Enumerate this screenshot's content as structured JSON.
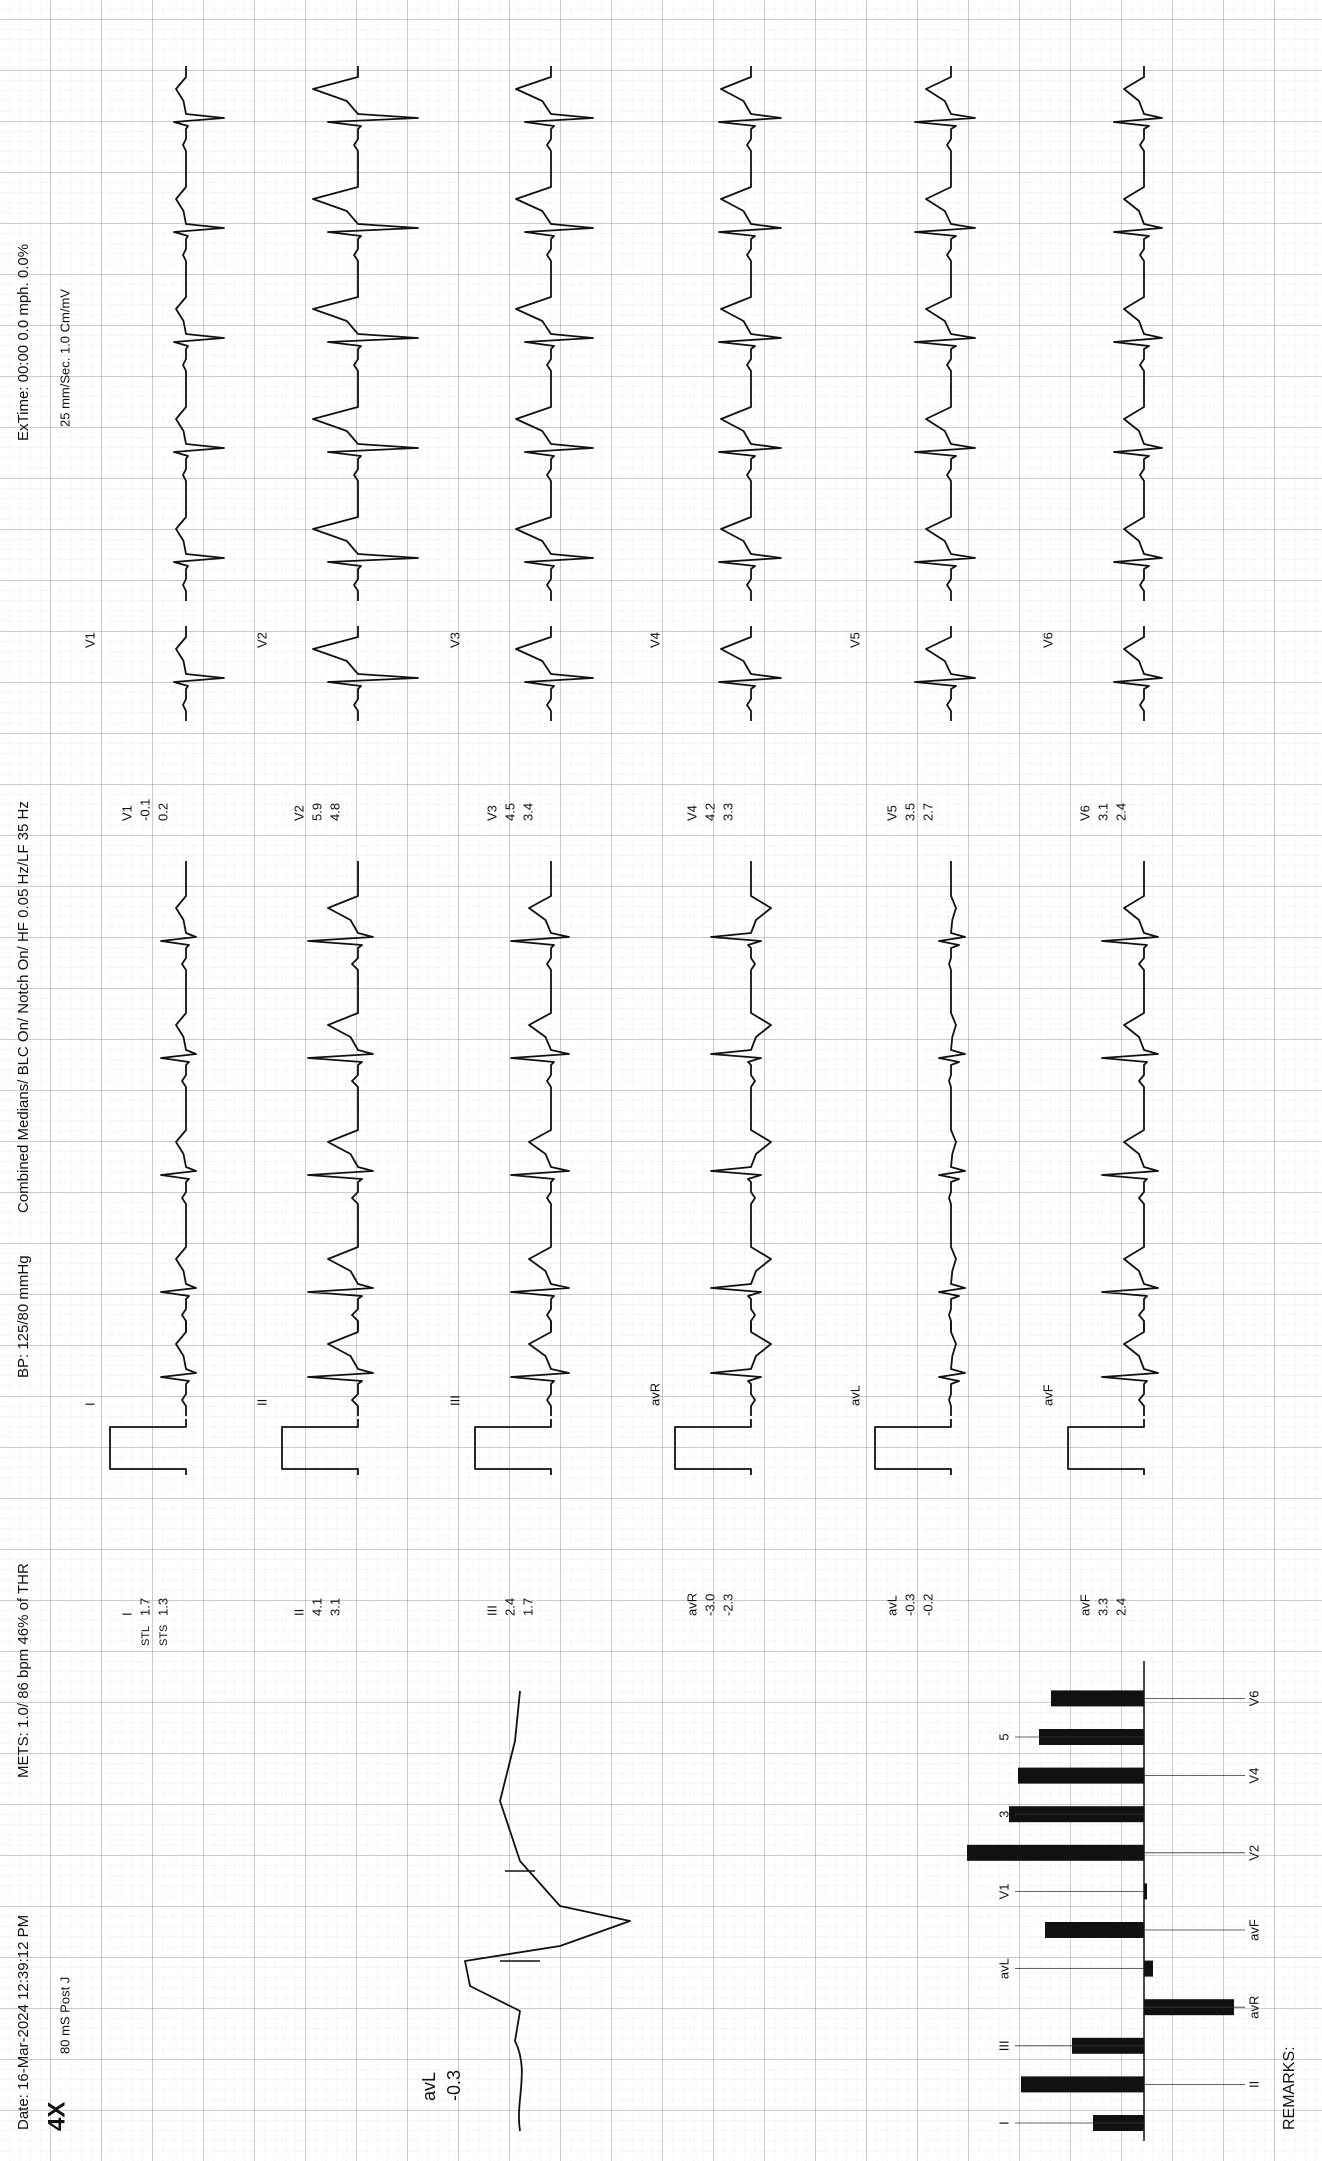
{
  "header": {
    "date": "Date: 16-Mar-2024 12:39:12 PM",
    "mets": "METS: 1.0/ 86 bpm 46% of THR",
    "bp": "BP: 125/80 mmHg",
    "filters": "Combined Medians/ BLC On/ Notch On/ HF 0.05 Hz/LF 35  Hz",
    "extime": "ExTime: 00:00   0.0 mph.   0.0%",
    "speed": "25 mm/Sec.  1.0 Cm/mV",
    "stage": "4X",
    "post_j": "80 mS Post J"
  },
  "median_zoom": {
    "lead": "avL",
    "value": "-0.3"
  },
  "measurement_labels": {
    "stl": "STL",
    "sts": "STS"
  },
  "leads": [
    {
      "name": "I",
      "stl": "1.7",
      "sts": "1.3"
    },
    {
      "name": "II",
      "stl": "4.1",
      "sts": "3.1"
    },
    {
      "name": "III",
      "stl": "2.4",
      "sts": "1.7"
    },
    {
      "name": "avR",
      "stl": "-3.0",
      "sts": "-2.3"
    },
    {
      "name": "avL",
      "stl": "-0.3",
      "sts": "-0.2"
    },
    {
      "name": "avF",
      "stl": "3.3",
      "sts": "2.4"
    },
    {
      "name": "V1",
      "stl": "-0.1",
      "sts": "0.2"
    },
    {
      "name": "V2",
      "stl": "5.9",
      "sts": "4.8"
    },
    {
      "name": "V3",
      "stl": "4.5",
      "sts": "3.4"
    },
    {
      "name": "V4",
      "stl": "4.2",
      "sts": "3.3"
    },
    {
      "name": "V5",
      "stl": "3.5",
      "sts": "2.7"
    },
    {
      "name": "V6",
      "stl": "3.1",
      "sts": "2.4"
    }
  ],
  "bar_labels": [
    "I",
    "II",
    "III",
    "avR",
    "avL",
    "avF",
    "V1",
    "V2",
    "3",
    "V4",
    "5",
    "V6"
  ],
  "remarks": "REMARKS:"
}
